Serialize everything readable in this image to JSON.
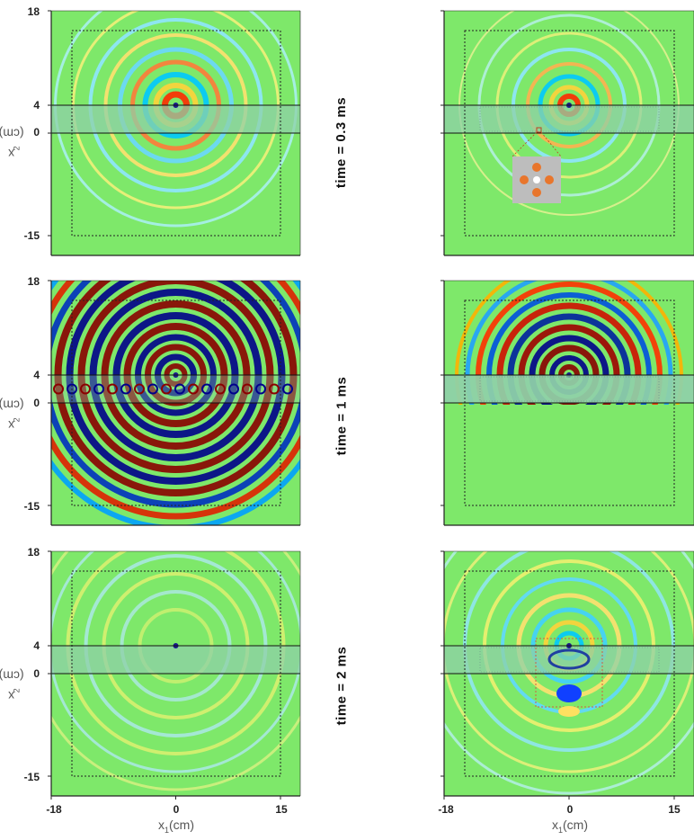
{
  "panel_rows": [
    {
      "time_label": "time = 0.3 ms"
    },
    {
      "time_label": "time = 1  ms"
    },
    {
      "time_label": "time = 2 ms"
    }
  ],
  "axes": {
    "ylabel_main": "x",
    "ylabel_sub": "2",
    "ylabel_unit": "(cm)",
    "xlabel_main": "x",
    "xlabel_sub": "1",
    "xlabel_unit": "(cm)",
    "yticks": [
      "18",
      "4",
      "0",
      "-15"
    ],
    "xticks": [
      "-18",
      "0",
      "15"
    ]
  },
  "colors": {
    "background": "#7ee86a",
    "layer": "#8fd0a8",
    "positive": "#8b0000",
    "negative": "#00008b",
    "inset_bg": "#bdbdbd",
    "inset_dot": "#e8762c"
  }
}
